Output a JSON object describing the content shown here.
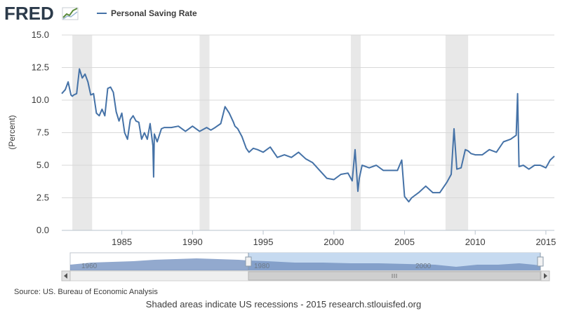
{
  "header": {
    "logo_text": "FRED",
    "logo_icon": "trend-line-icon"
  },
  "chart_data": {
    "type": "line",
    "title": "",
    "ylabel": "(Percent)",
    "xlabel": "",
    "ylim": [
      0,
      15
    ],
    "xlim": [
      1980.75,
      2015.6
    ],
    "y_ticks": [
      "0.0",
      "2.5",
      "5.0",
      "7.5",
      "10.0",
      "12.5",
      "15.0"
    ],
    "x_ticks": [
      "1985",
      "1990",
      "1995",
      "2000",
      "2005",
      "2010",
      "2015"
    ],
    "legend": "top-left",
    "grid": "horizontal",
    "series": [
      {
        "name": "Personal Saving Rate",
        "color": "#4572a7",
        "x": [
          1980.75,
          1981.0,
          1981.2,
          1981.4,
          1981.5,
          1981.6,
          1981.8,
          1982.0,
          1982.2,
          1982.4,
          1982.6,
          1982.8,
          1983.0,
          1983.2,
          1983.4,
          1983.6,
          1983.8,
          1984.0,
          1984.2,
          1984.4,
          1984.6,
          1984.8,
          1985.0,
          1985.2,
          1985.4,
          1985.6,
          1985.8,
          1986.0,
          1986.2,
          1986.4,
          1986.6,
          1986.8,
          1987.0,
          1987.2,
          1987.25,
          1987.3,
          1987.5,
          1987.8,
          1988.0,
          1988.5,
          1989.0,
          1989.5,
          1990.0,
          1990.5,
          1991.0,
          1991.3,
          1991.6,
          1992.0,
          1992.3,
          1992.6,
          1992.9,
          1993.0,
          1993.2,
          1993.5,
          1993.8,
          1994.0,
          1994.3,
          1994.6,
          1995.0,
          1995.5,
          1996.0,
          1996.5,
          1997.0,
          1997.5,
          1998.0,
          1998.5,
          1999.0,
          1999.5,
          2000.0,
          2000.5,
          2001.0,
          2001.3,
          2001.5,
          2001.7,
          2001.8,
          2002.0,
          2002.5,
          2003.0,
          2003.5,
          2004.0,
          2004.5,
          2004.8,
          2005.0,
          2005.3,
          2005.5,
          2006.0,
          2006.5,
          2007.0,
          2007.5,
          2008.0,
          2008.3,
          2008.5,
          2008.7,
          2009.0,
          2009.3,
          2009.5,
          2009.7,
          2010.0,
          2010.5,
          2011.0,
          2011.5,
          2012.0,
          2012.5,
          2012.9,
          2013.0,
          2013.1,
          2013.4,
          2013.8,
          2014.2,
          2014.6,
          2015.0,
          2015.3,
          2015.6
        ],
        "y": [
          10.5,
          10.8,
          11.4,
          10.4,
          10.3,
          10.4,
          10.5,
          12.4,
          11.7,
          12.0,
          11.4,
          10.4,
          10.5,
          9.0,
          8.8,
          9.3,
          8.8,
          10.9,
          11.0,
          10.6,
          9.1,
          8.4,
          9.0,
          7.5,
          7.0,
          8.5,
          8.8,
          8.4,
          8.3,
          7.0,
          7.5,
          7.0,
          8.2,
          6.5,
          4.1,
          7.4,
          6.8,
          7.8,
          7.9,
          7.9,
          8.0,
          7.6,
          8.0,
          7.6,
          7.9,
          7.7,
          7.9,
          8.2,
          9.5,
          9.0,
          8.3,
          8.0,
          7.8,
          7.2,
          6.3,
          6.0,
          6.3,
          6.2,
          6.0,
          6.4,
          5.6,
          5.8,
          5.6,
          6.0,
          5.5,
          5.2,
          4.6,
          4.0,
          3.9,
          4.3,
          4.4,
          3.8,
          6.2,
          3.0,
          4.0,
          5.0,
          4.8,
          5.0,
          4.6,
          4.6,
          4.6,
          5.4,
          2.6,
          2.2,
          2.5,
          2.9,
          3.4,
          2.9,
          2.9,
          3.7,
          4.3,
          7.8,
          4.7,
          4.8,
          6.2,
          6.1,
          5.9,
          5.8,
          5.8,
          6.2,
          6.0,
          6.8,
          7.0,
          7.3,
          10.5,
          4.9,
          5.0,
          4.7,
          5.0,
          5.0,
          4.8,
          5.4,
          5.7
        ]
      }
    ],
    "recessions": [
      [
        1981.5,
        1982.9
      ],
      [
        1990.5,
        1991.2
      ],
      [
        2001.2,
        2001.9
      ],
      [
        2007.9,
        2009.5
      ]
    ]
  },
  "navigator": {
    "labels": [
      "1960",
      "1980",
      "2000"
    ]
  },
  "footer": {
    "source": "Source: US. Bureau of Economic Analysis",
    "note": "Shaded areas indicate US recessions - 2015 research.stlouisfed.org"
  },
  "colors": {
    "line": "#4572a7",
    "recession": "#e8e8e8",
    "grid": "#d8d8d8",
    "navigator_selected": "#c6daf0",
    "navigator_fill": "#6d8cbd"
  }
}
